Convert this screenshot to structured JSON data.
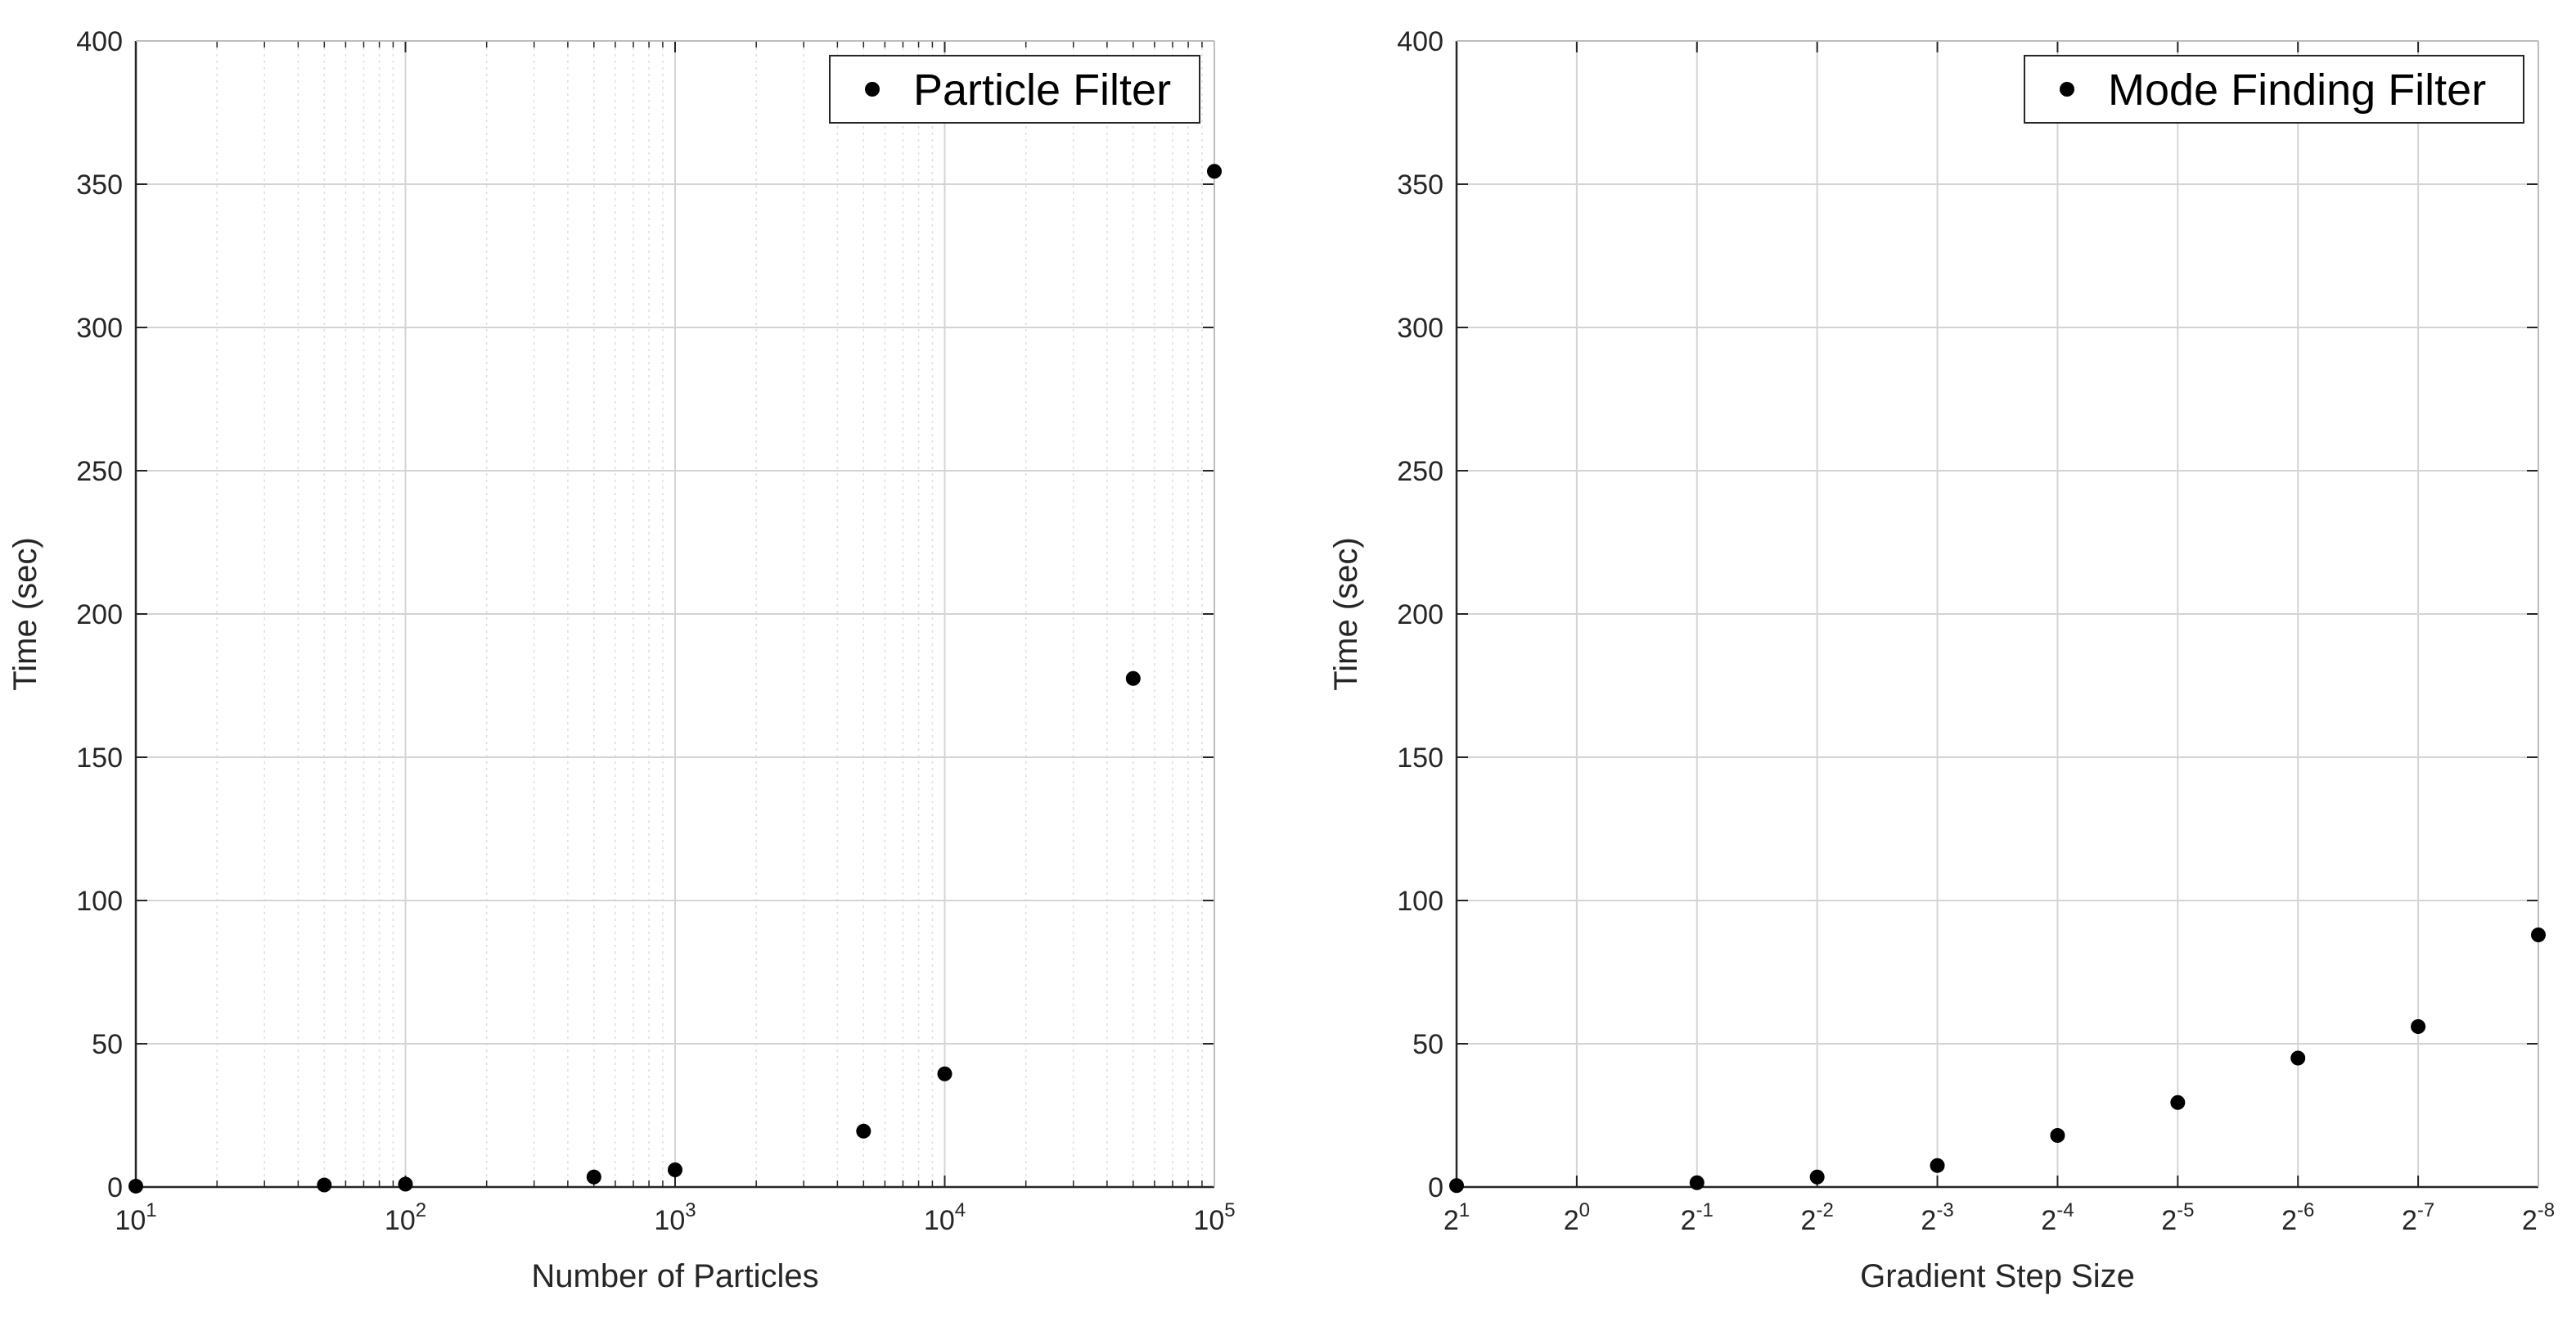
{
  "chart_data": [
    {
      "type": "scatter",
      "xscale": "log",
      "xlim": [
        10,
        100000
      ],
      "ylim": [
        0,
        400
      ],
      "xlabel": "Number of Particles",
      "ylabel": "Time (sec)",
      "x_ticks": [
        {
          "value": 10,
          "base": "10",
          "exp": "1"
        },
        {
          "value": 100,
          "base": "10",
          "exp": "2"
        },
        {
          "value": 1000,
          "base": "10",
          "exp": "3"
        },
        {
          "value": 10000,
          "base": "10",
          "exp": "4"
        },
        {
          "value": 100000,
          "base": "10",
          "exp": "5"
        }
      ],
      "y_ticks": [
        "0",
        "50",
        "100",
        "150",
        "200",
        "250",
        "300",
        "350",
        "400"
      ],
      "grid": true,
      "minor_grid": true,
      "legend_position": "top-right",
      "series": [
        {
          "name": "Particle Filter",
          "color": "#000000",
          "marker": "filled-circle",
          "x": [
            10,
            50,
            100,
            500,
            1000,
            5000,
            10000,
            50000,
            100000
          ],
          "y": [
            0.3,
            0.7,
            1,
            3.5,
            6,
            19.5,
            39.5,
            177.5,
            354.5
          ]
        }
      ]
    },
    {
      "type": "scatter",
      "xscale": "log2",
      "xlim": [
        2,
        0.00390625
      ],
      "ylim": [
        0,
        400
      ],
      "xlabel": "Gradient Step Size",
      "ylabel": "Time (sec)",
      "x_ticks": [
        {
          "value": 2,
          "base": "2",
          "exp": "1"
        },
        {
          "value": 1,
          "base": "2",
          "exp": "0"
        },
        {
          "value": 0.5,
          "base": "2",
          "exp": "-1"
        },
        {
          "value": 0.25,
          "base": "2",
          "exp": "-2"
        },
        {
          "value": 0.125,
          "base": "2",
          "exp": "-3"
        },
        {
          "value": 0.0625,
          "base": "2",
          "exp": "-4"
        },
        {
          "value": 0.03125,
          "base": "2",
          "exp": "-5"
        },
        {
          "value": 0.015625,
          "base": "2",
          "exp": "-6"
        },
        {
          "value": 0.0078125,
          "base": "2",
          "exp": "-7"
        },
        {
          "value": 0.00390625,
          "base": "2",
          "exp": "-8"
        }
      ],
      "y_ticks": [
        "0",
        "50",
        "100",
        "150",
        "200",
        "250",
        "300",
        "350",
        "400"
      ],
      "grid": true,
      "minor_grid": false,
      "legend_position": "top-right",
      "series": [
        {
          "name": "Mode Finding Filter",
          "color": "#000000",
          "marker": "filled-circle",
          "x": [
            2,
            0.5,
            0.25,
            0.125,
            0.0625,
            0.03125,
            0.015625,
            0.0078125,
            0.00390625
          ],
          "y": [
            0.5,
            1.5,
            3.5,
            7.5,
            18,
            29.5,
            45,
            56,
            88
          ]
        }
      ]
    }
  ]
}
